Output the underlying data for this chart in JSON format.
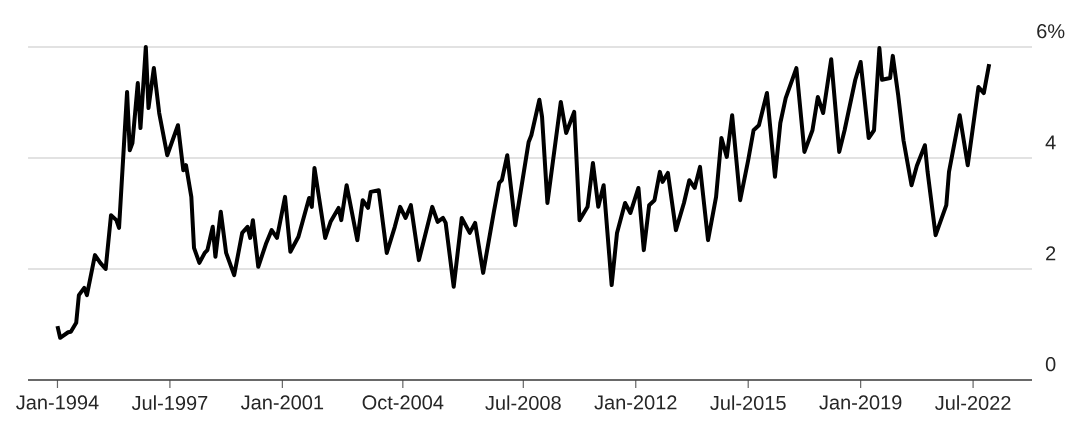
{
  "chart_data": {
    "type": "line",
    "x": [
      "1994-01",
      "1994-02",
      "1994-05",
      "1994-06",
      "1994-08",
      "1994-09",
      "1994-11",
      "1994-12",
      "1995-03",
      "1995-05",
      "1995-07",
      "1995-09",
      "1995-11",
      "1995-12",
      "1996-03",
      "1996-04",
      "1996-05",
      "1996-07",
      "1996-08",
      "1996-10",
      "1996-11",
      "1997-01",
      "1997-03",
      "1997-06",
      "1997-10",
      "1997-12",
      "1998-01",
      "1998-03",
      "1998-04",
      "1998-06",
      "1998-08",
      "1998-09",
      "1998-11",
      "1998-12",
      "1999-02",
      "1999-04",
      "1999-07",
      "1999-10",
      "1999-12",
      "2000-01",
      "2000-02",
      "2000-04",
      "2000-07",
      "2000-09",
      "2000-11",
      "2001-02",
      "2001-04",
      "2001-07",
      "2001-11",
      "2001-12",
      "2002-01",
      "2002-05",
      "2002-07",
      "2002-10",
      "2002-11",
      "2003-01",
      "2003-05",
      "2003-07",
      "2003-09",
      "2003-10",
      "2004-01",
      "2004-04",
      "2004-07",
      "2004-09",
      "2004-11",
      "2005-01",
      "2005-04",
      "2005-09",
      "2005-11",
      "2006-01",
      "2006-02",
      "2006-05",
      "2006-08",
      "2006-11",
      "2007-01",
      "2007-04",
      "2007-08",
      "2007-10",
      "2007-11",
      "2008-01",
      "2008-04",
      "2008-09",
      "2008-10",
      "2009-01",
      "2009-02",
      "2009-04",
      "2009-09",
      "2009-11",
      "2010-02",
      "2010-04",
      "2010-07",
      "2010-09",
      "2010-11",
      "2011-01",
      "2011-04",
      "2011-06",
      "2011-09",
      "2011-11",
      "2012-02",
      "2012-04",
      "2012-06",
      "2012-08",
      "2012-10",
      "2012-11",
      "2013-01",
      "2013-04",
      "2013-07",
      "2013-09",
      "2013-11",
      "2014-01",
      "2014-04",
      "2014-07",
      "2014-09",
      "2014-11",
      "2015-01",
      "2015-04",
      "2015-07",
      "2015-09",
      "2015-11",
      "2016-02",
      "2016-05",
      "2016-07",
      "2016-09",
      "2017-01",
      "2017-04",
      "2017-07",
      "2017-09",
      "2017-11",
      "2018-02",
      "2018-05",
      "2018-07",
      "2018-11",
      "2019-01",
      "2019-04",
      "2019-06",
      "2019-08",
      "2019-09",
      "2019-12",
      "2020-01",
      "2020-03",
      "2020-05",
      "2020-08",
      "2020-10",
      "2021-01",
      "2021-02",
      "2021-05",
      "2021-09",
      "2021-10",
      "2022-02",
      "2022-05",
      "2022-09",
      "2022-11",
      "2023-01"
    ],
    "series": [
      {
        "color": "#000000",
        "values": [
          0.97,
          0.76,
          0.86,
          0.87,
          1.03,
          1.53,
          1.66,
          1.53,
          2.25,
          2.11,
          2.0,
          2.97,
          2.88,
          2.74,
          5.19,
          4.14,
          4.27,
          5.35,
          4.54,
          6.0,
          4.9,
          5.62,
          4.81,
          4.05,
          4.59,
          3.78,
          3.87,
          3.3,
          2.38,
          2.11,
          2.29,
          2.34,
          2.76,
          2.22,
          3.03,
          2.29,
          1.89,
          2.65,
          2.76,
          2.56,
          2.88,
          2.04,
          2.47,
          2.7,
          2.56,
          3.3,
          2.31,
          2.58,
          3.28,
          3.12,
          3.82,
          2.56,
          2.85,
          3.1,
          2.88,
          3.51,
          2.52,
          3.24,
          3.1,
          3.39,
          3.42,
          2.29,
          2.76,
          3.12,
          2.92,
          3.15,
          2.16,
          3.12,
          2.85,
          2.92,
          2.83,
          1.68,
          2.92,
          2.65,
          2.83,
          1.93,
          3.03,
          3.55,
          3.6,
          4.05,
          2.79,
          4.29,
          4.41,
          5.05,
          4.74,
          3.19,
          5.01,
          4.45,
          4.83,
          2.88,
          3.12,
          3.91,
          3.12,
          3.51,
          1.71,
          2.65,
          3.19,
          3.01,
          3.46,
          2.34,
          3.15,
          3.24,
          3.75,
          3.57,
          3.73,
          2.7,
          3.19,
          3.6,
          3.46,
          3.84,
          2.52,
          3.3,
          4.36,
          4.02,
          4.77,
          3.24,
          3.96,
          4.5,
          4.59,
          5.17,
          3.66,
          4.63,
          5.08,
          5.62,
          4.11,
          4.5,
          5.1,
          4.81,
          5.78,
          4.11,
          4.5,
          5.41,
          5.73,
          4.36,
          4.5,
          5.98,
          5.41,
          5.44,
          5.84,
          5.14,
          4.32,
          3.51,
          3.86,
          4.23,
          3.75,
          2.61,
          3.15,
          3.75,
          4.77,
          3.87,
          5.28,
          5.17,
          5.69
        ]
      }
    ],
    "xlim": [
      "1993-02",
      "2024-05"
    ],
    "xticks": [
      {
        "value": "1994-01",
        "label": "Jan-1994"
      },
      {
        "value": "1997-07",
        "label": "Jul-1997"
      },
      {
        "value": "2001-01",
        "label": "Jan-2001"
      },
      {
        "value": "2004-10",
        "label": "Oct-2004"
      },
      {
        "value": "2008-07",
        "label": "Jul-2008"
      },
      {
        "value": "2012-01",
        "label": "Jan-2012"
      },
      {
        "value": "2015-07",
        "label": "Jul-2015"
      },
      {
        "value": "2019-01",
        "label": "Jan-2019"
      },
      {
        "value": "2022-07",
        "label": "Jul-2022"
      }
    ],
    "ylim": [
      0,
      6
    ],
    "yticks": [
      0,
      2,
      4,
      {
        "value": 6,
        "label": "6%"
      }
    ],
    "grid": "y"
  }
}
